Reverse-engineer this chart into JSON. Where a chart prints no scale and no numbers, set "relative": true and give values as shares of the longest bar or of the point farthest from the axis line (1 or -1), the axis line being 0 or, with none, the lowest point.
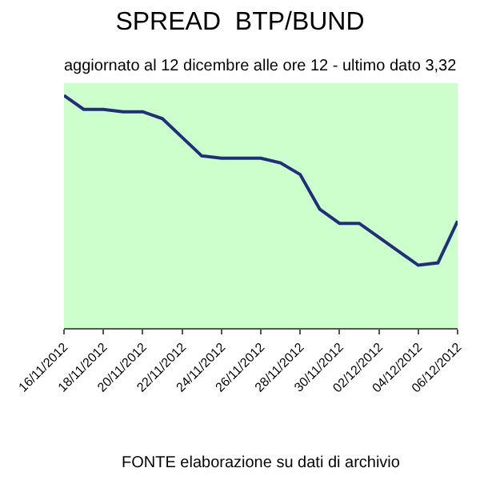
{
  "chart_data": {
    "type": "line",
    "title": "SPREAD  BTP/BUND",
    "subtitle": "aggiornato al 12 dicembre alle ore 12 - ultimo dato 3,32",
    "relative": true,
    "legend": false,
    "marker": "none",
    "line_style": "solid",
    "x": [
      "2012-11-16",
      "2012-11-17",
      "2012-11-18",
      "2012-11-19",
      "2012-11-20",
      "2012-11-21",
      "2012-11-22",
      "2012-11-23",
      "2012-11-24",
      "2012-11-25",
      "2012-11-26",
      "2012-11-27",
      "2012-11-28",
      "2012-11-29",
      "2012-11-30",
      "2012-12-01",
      "2012-12-02",
      "2012-12-03",
      "2012-12-04",
      "2012-12-05",
      "2012-12-06"
    ],
    "xlim": [
      "2012-11-16",
      "2012-12-06"
    ],
    "xticks": [
      {
        "value": "2012-11-16",
        "label": "16/11/2012"
      },
      {
        "value": "2012-11-18",
        "label": "18/11/2012"
      },
      {
        "value": "2012-11-20",
        "label": "20/11/2012"
      },
      {
        "value": "2012-11-22",
        "label": "22/11/2012"
      },
      {
        "value": "2012-11-24",
        "label": "24/11/2012"
      },
      {
        "value": "2012-11-26",
        "label": "26/11/2012"
      },
      {
        "value": "2012-11-28",
        "label": "28/11/2012"
      },
      {
        "value": "2012-11-30",
        "label": "30/11/2012"
      },
      {
        "value": "2012-12-02",
        "label": "02/12/2012"
      },
      {
        "value": "2012-12-04",
        "label": "04/12/2012"
      },
      {
        "value": "2012-12-06",
        "label": "06/12/2012"
      }
    ],
    "series": [
      {
        "color": "#1f2f7a",
        "values": [
          1.0,
          0.94,
          0.94,
          0.93,
          0.93,
          0.9,
          0.82,
          0.74,
          0.73,
          0.73,
          0.73,
          0.71,
          0.66,
          0.51,
          0.45,
          0.45,
          0.39,
          0.33,
          0.27,
          0.28,
          0.46
        ]
      }
    ],
    "annotations": [
      "FONTE elaborazione su dati di archivio"
    ]
  }
}
